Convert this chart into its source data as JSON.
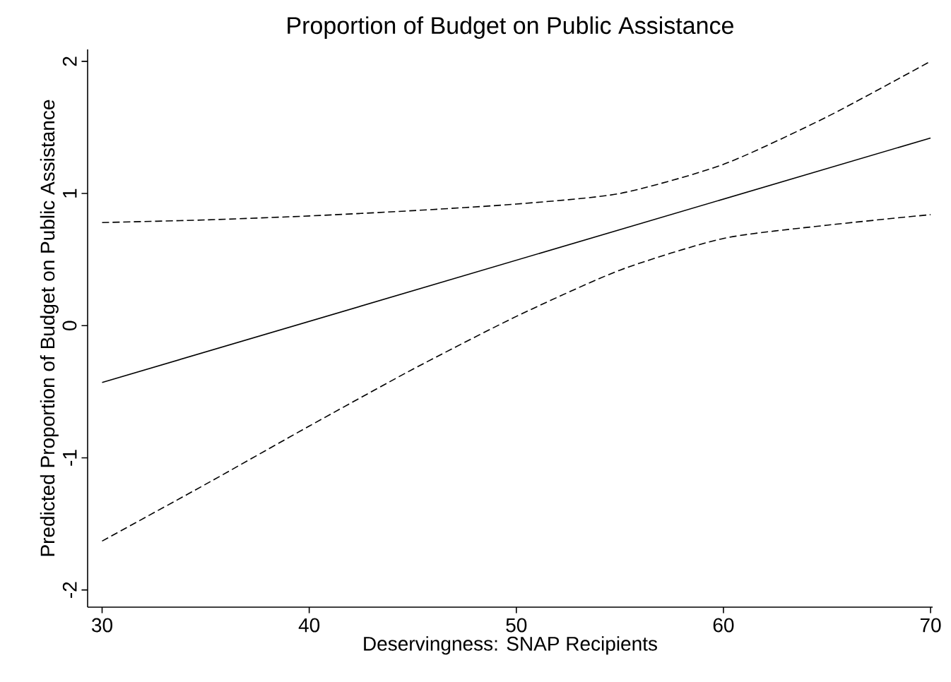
{
  "chart_data": {
    "type": "line",
    "title": "Proportion of Budget on Public Assistance",
    "xlabel": "Deservingness: SNAP Recipients",
    "ylabel": "Predicted Proportion of Budget on Public Assistance",
    "xlim": [
      29.3,
      70.1
    ],
    "ylim": [
      -2.13,
      2.09
    ],
    "xticks": [
      30,
      40,
      50,
      60,
      70
    ],
    "yticks": [
      -2,
      -1,
      0,
      1,
      2
    ],
    "grid": false,
    "marker": "none",
    "series": [
      {
        "color": "#000000",
        "line_style": "solid",
        "x": [
          30,
          70
        ],
        "values": [
          -0.43,
          1.42
        ]
      },
      {
        "color": "#000000",
        "line_style": "dashed",
        "x": [
          30,
          35,
          40,
          45,
          50,
          55,
          60,
          65,
          70
        ],
        "values": [
          0.78,
          0.8,
          0.83,
          0.87,
          0.92,
          1.0,
          1.22,
          1.58,
          2.0
        ]
      },
      {
        "color": "#000000",
        "line_style": "dashed",
        "x": [
          30,
          35,
          40,
          45,
          50,
          55,
          60,
          65,
          70
        ],
        "values": [
          -1.63,
          -1.2,
          -0.76,
          -0.33,
          0.07,
          0.42,
          0.66,
          0.76,
          0.84
        ]
      }
    ]
  }
}
